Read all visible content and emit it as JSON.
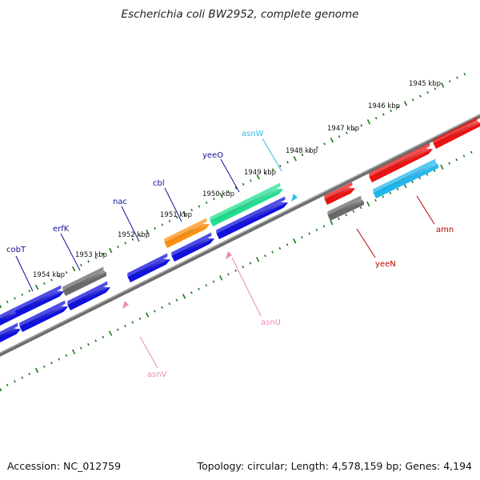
{
  "title": "Escherichia coli BW2952, complete genome",
  "footer": {
    "accession": "Accession: NC_012759",
    "stats": "Topology: circular; Length: 4,578,159 bp; Genes: 4,194"
  },
  "colors": {
    "backbone": "#8a8a8a",
    "ticks": "#1a7a1a",
    "gene_blue": "#1010e0",
    "gene_red": "#ee1111",
    "gene_gray": "#6a6a6a",
    "gene_orange": "#ff9010",
    "gene_green": "#20e090",
    "gene_cyan": "#20b8f0",
    "label_blue": "#10109a",
    "label_red": "#bb0000",
    "label_pink": "#ee88bb",
    "label_cyan": "#30bbee"
  },
  "kbp_labels": [
    "1945 kbp",
    "1946 kbp",
    "1947 kbp",
    "1948 kbp",
    "1949 kbp",
    "1950 kbp",
    "1951 kbp",
    "1952 kbp",
    "1953 kbp",
    "1954 kbp"
  ],
  "genes": [
    {
      "name": "cobT",
      "color": "label_blue"
    },
    {
      "name": "erfK",
      "color": "label_blue"
    },
    {
      "name": "nac",
      "color": "label_blue"
    },
    {
      "name": "cbl",
      "color": "label_blue"
    },
    {
      "name": "yeeO",
      "color": "label_blue"
    },
    {
      "name": "asnW",
      "color": "label_cyan"
    },
    {
      "name": "asnU",
      "color": "label_pink"
    },
    {
      "name": "asnV",
      "color": "label_pink"
    },
    {
      "name": "yeeN",
      "color": "label_red"
    },
    {
      "name": "amn",
      "color": "label_red"
    }
  ]
}
